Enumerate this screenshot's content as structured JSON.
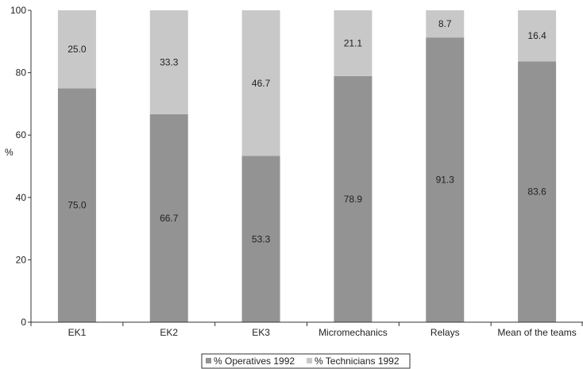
{
  "chart_data": {
    "type": "bar",
    "stacked": true,
    "categories": [
      "EK1",
      "EK2",
      "EK3",
      "Micromechanics",
      "Relays",
      "Mean of the teams"
    ],
    "series": [
      {
        "name": "% Operatives 1992",
        "values": [
          75.0,
          66.7,
          53.3,
          78.9,
          91.3,
          83.6
        ],
        "labels": [
          "75.0",
          "66.7",
          "53.3",
          "78.9",
          "91.3",
          "83.6"
        ],
        "color": "#939393"
      },
      {
        "name": "% Technicians 1992",
        "values": [
          25.0,
          33.3,
          46.7,
          21.1,
          8.7,
          16.4
        ],
        "labels": [
          "25.0",
          "33.3",
          "46.7",
          "21.1",
          "8.7",
          "16.4"
        ],
        "color": "#c8c8c8"
      }
    ],
    "ylabel": "%",
    "ylim": [
      0,
      100
    ],
    "yticks": [
      0,
      20,
      40,
      60,
      80,
      100
    ],
    "grid": false,
    "legend": "bottom-center"
  }
}
